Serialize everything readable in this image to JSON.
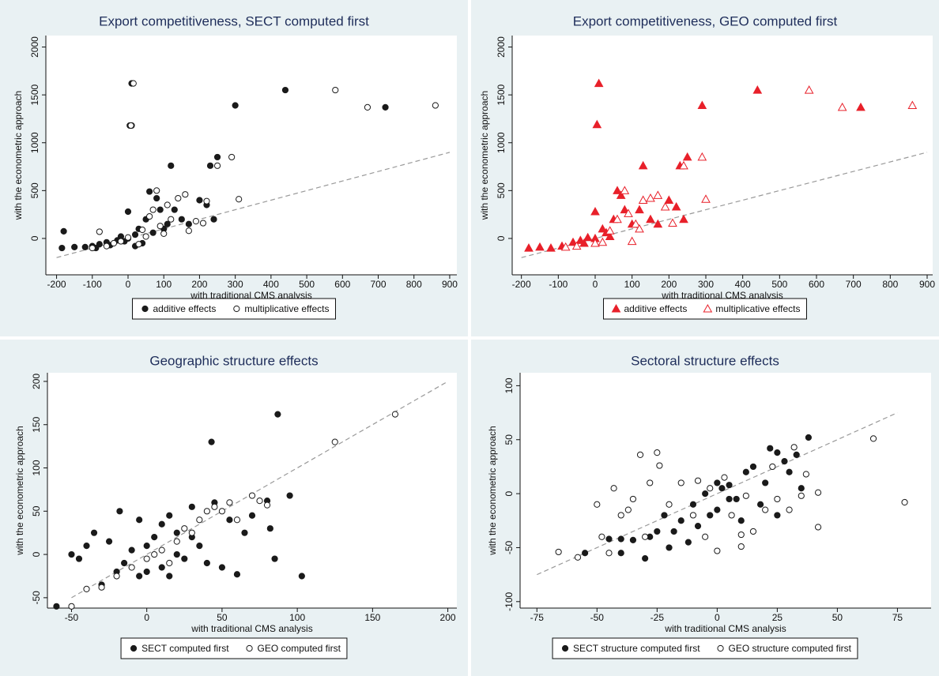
{
  "chart_data": [
    {
      "type": "scatter",
      "title": "Export competitiveness, SECT computed first",
      "x_label": "with traditional CMS analysis",
      "y_label": "with the econometric approach",
      "xlim": [
        -230,
        920
      ],
      "ylim": [
        -380,
        2120
      ],
      "xticks": [
        -200,
        -100,
        0,
        100,
        200,
        300,
        400,
        500,
        600,
        700,
        800,
        900
      ],
      "yticks": [
        0,
        500,
        1000,
        1500,
        2000
      ],
      "diagonal": {
        "x": [
          -200,
          900
        ],
        "y": [
          -200,
          900
        ]
      },
      "series": [
        {
          "name": "additive effects",
          "color": "#1a1a1a",
          "marker": "circle",
          "filled": true,
          "x": [
            -185,
            -180,
            -150,
            -120,
            -100,
            -90,
            -80,
            -60,
            -50,
            -30,
            -20,
            -10,
            0,
            0,
            5,
            10,
            10,
            20,
            20,
            30,
            40,
            50,
            60,
            70,
            80,
            90,
            100,
            110,
            120,
            130,
            150,
            170,
            200,
            220,
            230,
            240,
            250,
            300,
            440,
            720
          ],
          "values": [
            -100,
            75,
            -90,
            -90,
            -80,
            -100,
            -60,
            -40,
            -70,
            -20,
            20,
            -30,
            280,
            0,
            1180,
            1620,
            1180,
            40,
            -80,
            100,
            -50,
            200,
            490,
            60,
            420,
            300,
            100,
            150,
            760,
            300,
            200,
            150,
            400,
            350,
            760,
            200,
            850,
            1390,
            1550,
            1370
          ]
        },
        {
          "name": "multiplicative effects",
          "color": "#1a1a1a",
          "marker": "circle",
          "filled": false,
          "x": [
            -100,
            -80,
            -60,
            -40,
            -20,
            0,
            8,
            15,
            30,
            40,
            50,
            60,
            70,
            80,
            90,
            100,
            110,
            120,
            140,
            160,
            170,
            190,
            210,
            220,
            250,
            290,
            310,
            580,
            670,
            860
          ],
          "values": [
            -100,
            70,
            -80,
            -50,
            -30,
            10,
            1180,
            1620,
            -60,
            90,
            20,
            230,
            300,
            500,
            130,
            50,
            350,
            200,
            420,
            460,
            80,
            180,
            160,
            390,
            760,
            850,
            410,
            1550,
            1370,
            1390
          ]
        }
      ]
    },
    {
      "type": "scatter",
      "title": "Export competitiveness, GEO computed first",
      "x_label": "with traditional CMS analysis",
      "y_label": "with the econometric approach",
      "xlim": [
        -225,
        915
      ],
      "ylim": [
        -380,
        2120
      ],
      "xticks": [
        -200,
        -100,
        0,
        100,
        200,
        300,
        400,
        500,
        600,
        700,
        800,
        900
      ],
      "yticks": [
        0,
        500,
        1000,
        1500,
        2000
      ],
      "diagonal": {
        "x": [
          -200,
          900
        ],
        "y": [
          -200,
          900
        ]
      },
      "series": [
        {
          "name": "additive effects",
          "color": "#e8202a",
          "marker": "triangle",
          "filled": true,
          "x": [
            -180,
            -150,
            -120,
            -90,
            -60,
            -40,
            -30,
            -20,
            0,
            0,
            5,
            10,
            20,
            30,
            40,
            50,
            60,
            70,
            80,
            100,
            120,
            130,
            150,
            170,
            200,
            220,
            230,
            240,
            250,
            290,
            440,
            720
          ],
          "values": [
            -100,
            -90,
            -100,
            -80,
            -40,
            -20,
            -50,
            10,
            280,
            0,
            1190,
            1620,
            100,
            60,
            20,
            200,
            500,
            450,
            300,
            150,
            300,
            760,
            200,
            150,
            400,
            330,
            760,
            200,
            850,
            1390,
            1550,
            1370
          ]
        },
        {
          "name": "multiplicative effects",
          "color": "#e8202a",
          "marker": "triangle",
          "filled": false,
          "x": [
            -80,
            -50,
            0,
            20,
            40,
            60,
            80,
            90,
            100,
            110,
            120,
            130,
            150,
            170,
            190,
            210,
            240,
            290,
            300,
            580,
            670,
            860
          ],
          "values": [
            -90,
            -80,
            -50,
            -40,
            80,
            200,
            500,
            260,
            -30,
            150,
            100,
            400,
            420,
            450,
            330,
            160,
            760,
            850,
            410,
            1550,
            1370,
            1390
          ]
        }
      ]
    },
    {
      "type": "scatter",
      "title": "Geographic structure effects",
      "x_label": "with traditional CMS analysis",
      "y_label": "with the econometric approach",
      "xlim": [
        -66,
        206
      ],
      "ylim": [
        -62,
        210
      ],
      "xticks": [
        -50,
        0,
        50,
        100,
        150,
        200
      ],
      "yticks": [
        -50,
        0,
        50,
        100,
        150,
        200
      ],
      "diagonal": {
        "x": [
          -50,
          200
        ],
        "y": [
          -50,
          200
        ]
      },
      "series": [
        {
          "name": "SECT computed first",
          "color": "#1a1a1a",
          "marker": "circle",
          "filled": true,
          "x": [
            -60,
            -50,
            -45,
            -40,
            -35,
            -30,
            -25,
            -20,
            -18,
            -15,
            -10,
            -5,
            -5,
            0,
            0,
            5,
            10,
            10,
            15,
            15,
            20,
            20,
            25,
            30,
            30,
            35,
            40,
            43,
            45,
            50,
            55,
            60,
            65,
            70,
            80,
            82,
            85,
            87,
            95,
            103
          ],
          "values": [
            -60,
            0,
            -5,
            10,
            25,
            -35,
            15,
            -20,
            50,
            -10,
            5,
            40,
            -25,
            -20,
            10,
            20,
            -15,
            35,
            45,
            -25,
            25,
            0,
            -5,
            55,
            20,
            10,
            -10,
            130,
            60,
            -15,
            40,
            -23,
            25,
            45,
            62,
            30,
            -5,
            162,
            68,
            -25
          ]
        },
        {
          "name": "GEO computed first",
          "color": "#1a1a1a",
          "marker": "circle",
          "filled": false,
          "x": [
            -50,
            -40,
            -30,
            -20,
            -10,
            0,
            5,
            10,
            15,
            20,
            25,
            30,
            35,
            40,
            45,
            50,
            55,
            60,
            70,
            75,
            80,
            125,
            165
          ],
          "values": [
            -60,
            -40,
            -38,
            -25,
            -15,
            -5,
            0,
            5,
            -10,
            15,
            30,
            25,
            40,
            50,
            55,
            50,
            60,
            40,
            68,
            62,
            57,
            130,
            162
          ]
        }
      ]
    },
    {
      "type": "scatter",
      "title": "Sectoral structure effects",
      "x_label": "with traditional CMS analysis",
      "y_label": "with the econometric approach",
      "xlim": [
        -82,
        89
      ],
      "ylim": [
        -106,
        112
      ],
      "xticks": [
        -75,
        -50,
        -25,
        0,
        25,
        50,
        75
      ],
      "yticks": [
        -100,
        -50,
        0,
        50,
        100
      ],
      "diagonal": {
        "x": [
          -75,
          75
        ],
        "y": [
          -75,
          75
        ]
      },
      "series": [
        {
          "name": "SECT structure computed first",
          "color": "#1a1a1a",
          "marker": "circle",
          "filled": true,
          "x": [
            -55,
            -45,
            -40,
            -40,
            -35,
            -30,
            -28,
            -25,
            -22,
            -20,
            -18,
            -15,
            -12,
            -10,
            -8,
            -5,
            -3,
            0,
            0,
            2,
            5,
            5,
            8,
            10,
            12,
            15,
            18,
            20,
            22,
            25,
            25,
            28,
            30,
            33,
            35,
            38
          ],
          "values": [
            -55,
            -42,
            -55,
            -42,
            -43,
            -60,
            -40,
            -35,
            -20,
            -50,
            -35,
            -25,
            -45,
            -10,
            -30,
            0,
            -20,
            -15,
            10,
            5,
            8,
            -5,
            -5,
            -25,
            20,
            25,
            -10,
            10,
            42,
            -20,
            38,
            30,
            20,
            36,
            5,
            52
          ]
        },
        {
          "name": "GEO structure computed first",
          "color": "#1a1a1a",
          "marker": "circle",
          "filled": false,
          "x": [
            -66,
            -58,
            -50,
            -48,
            -45,
            -43,
            -40,
            -37,
            -35,
            -32,
            -30,
            -28,
            -25,
            -24,
            -20,
            -15,
            -10,
            -8,
            -5,
            -3,
            0,
            3,
            6,
            10,
            10,
            12,
            15,
            20,
            23,
            25,
            30,
            32,
            35,
            37,
            42,
            42,
            65,
            78
          ],
          "values": [
            -54,
            -59,
            -10,
            -40,
            -55,
            5,
            -20,
            -15,
            -5,
            36,
            -40,
            10,
            38,
            26,
            -10,
            10,
            -20,
            12,
            -40,
            5,
            -53,
            15,
            -20,
            -38,
            -49,
            -2,
            -35,
            -15,
            25,
            -5,
            -15,
            43,
            -2,
            18,
            1,
            -31,
            51,
            -8
          ]
        }
      ]
    }
  ]
}
